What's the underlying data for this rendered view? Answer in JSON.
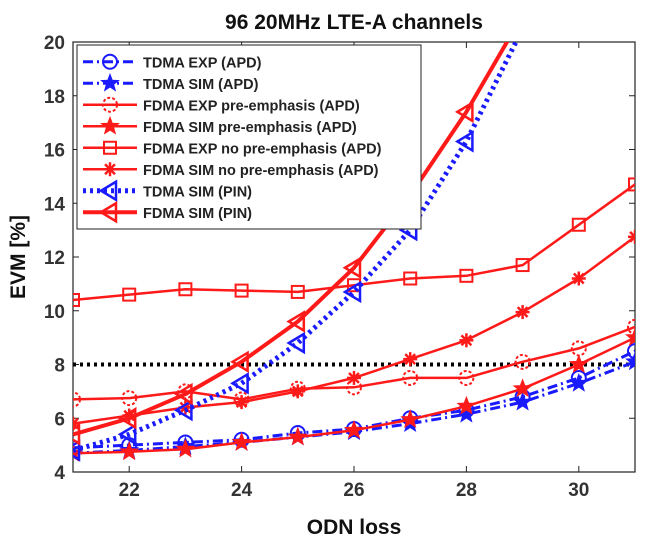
{
  "chart_data": {
    "type": "line",
    "title": "96 20MHz LTE-A channels",
    "xlabel": "ODN loss",
    "ylabel": "EVM [%]",
    "xlim": [
      21,
      31
    ],
    "ylim": [
      4,
      20
    ],
    "xticks": [
      22,
      24,
      26,
      28,
      30
    ],
    "yticks": [
      4,
      6,
      8,
      10,
      12,
      14,
      16,
      18,
      20
    ],
    "xtick_labels": [
      "22",
      "24",
      "26",
      "28",
      "30"
    ],
    "ytick_labels": [
      "4",
      "6",
      "8",
      "10",
      "12",
      "14",
      "16",
      "18",
      "20"
    ],
    "grid": false,
    "legend_position": "top-left",
    "reference_line": {
      "y": 8,
      "color": "#000000",
      "style": "dotted"
    },
    "series": [
      {
        "name": "TDMA EXP (APD)",
        "color": "#1a1aff",
        "line": "dashdot",
        "marker": "circle",
        "x": [
          21,
          22,
          23,
          24,
          25,
          26,
          27,
          28,
          29,
          30,
          31
        ],
        "y": [
          4.9,
          5.0,
          5.1,
          5.2,
          5.45,
          5.6,
          6.0,
          6.3,
          6.8,
          7.5,
          8.5
        ]
      },
      {
        "name": "TDMA SIM (APD)",
        "color": "#1a1aff",
        "line": "dashdot",
        "marker": "star",
        "x": [
          21,
          22,
          23,
          24,
          25,
          26,
          27,
          28,
          29,
          30,
          31
        ],
        "y": [
          4.7,
          4.8,
          4.95,
          5.1,
          5.3,
          5.5,
          5.8,
          6.15,
          6.6,
          7.3,
          8.1
        ]
      },
      {
        "name": "FDMA EXP pre-emphasis (APD)",
        "color": "#ff1a1a",
        "line": "solid",
        "marker": "dotted-circle",
        "x": [
          21,
          22,
          23,
          24,
          25,
          26,
          27,
          28,
          29,
          30,
          31
        ],
        "y": [
          6.7,
          6.75,
          7.0,
          6.7,
          7.1,
          7.15,
          7.5,
          7.5,
          8.1,
          8.6,
          9.4
        ]
      },
      {
        "name": "FDMA SIM pre-emphasis (APD)",
        "color": "#ff1a1a",
        "line": "solid",
        "marker": "star",
        "x": [
          21,
          22,
          23,
          24,
          25,
          26,
          27,
          28,
          29,
          30,
          31
        ],
        "y": [
          4.7,
          4.75,
          4.85,
          5.1,
          5.3,
          5.55,
          5.95,
          6.45,
          7.1,
          8.0,
          9.0
        ]
      },
      {
        "name": "FDMA EXP no pre-emphasis (APD)",
        "color": "#ff1a1a",
        "line": "solid",
        "marker": "square",
        "x": [
          21,
          22,
          23,
          24,
          25,
          26,
          27,
          28,
          29,
          30,
          31
        ],
        "y": [
          10.4,
          10.6,
          10.8,
          10.75,
          10.7,
          10.95,
          11.2,
          11.3,
          11.7,
          13.2,
          14.7
        ]
      },
      {
        "name": "FDMA SIM no pre-emphasis (APD)",
        "color": "#ff1a1a",
        "line": "solid",
        "marker": "asterisk",
        "x": [
          21,
          22,
          23,
          24,
          25,
          26,
          27,
          28,
          29,
          30,
          31
        ],
        "y": [
          5.8,
          6.1,
          6.4,
          6.6,
          7.0,
          7.5,
          8.2,
          8.9,
          9.95,
          11.2,
          12.75
        ]
      },
      {
        "name": "TDMA SIM (PIN)",
        "color": "#1a1aff",
        "line": "dotted",
        "marker": "triangle-left",
        "x": [
          21,
          22,
          23,
          24,
          25,
          26,
          27,
          28,
          29
        ],
        "y": [
          4.8,
          5.4,
          6.3,
          7.3,
          8.8,
          10.7,
          13.0,
          16.3,
          20.5
        ]
      },
      {
        "name": "FDMA SIM (PIN)",
        "color": "#ff1a1a",
        "line": "solid-thick",
        "marker": "triangle-left",
        "x": [
          21,
          22,
          23,
          24,
          25,
          26,
          27,
          28,
          29
        ],
        "y": [
          5.4,
          6.0,
          6.9,
          8.1,
          9.6,
          11.6,
          14.3,
          17.4,
          21.0
        ]
      }
    ]
  }
}
